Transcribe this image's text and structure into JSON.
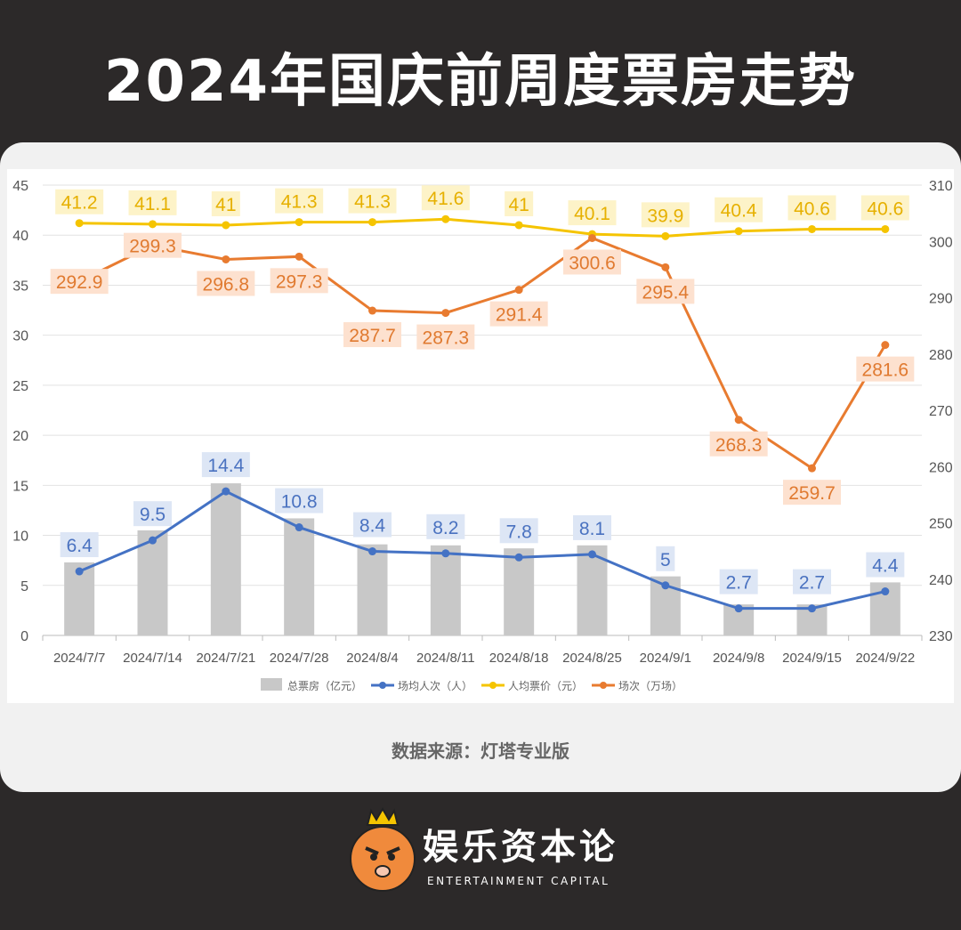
{
  "title": "2024年国庆前周度票房走势",
  "source": "数据来源：灯塔专业版",
  "brand": {
    "name_cn": "娱乐资本论",
    "name_en": "ENTERTAINMENT CAPITAL"
  },
  "chart_data": {
    "type": "bar+line",
    "categories": [
      "2024/7/7",
      "2024/7/14",
      "2024/7/21",
      "2024/7/28",
      "2024/8/4",
      "2024/8/11",
      "2024/8/18",
      "2024/8/25",
      "2024/9/1",
      "2024/9/8",
      "2024/9/15",
      "2024/9/22"
    ],
    "left_axis": {
      "ylim": [
        0,
        45
      ],
      "ticks": [
        0,
        5,
        10,
        15,
        20,
        25,
        30,
        35,
        40,
        45
      ]
    },
    "right_axis": {
      "ylim": [
        230,
        310
      ],
      "ticks": [
        230,
        240,
        250,
        260,
        270,
        280,
        290,
        300,
        310
      ]
    },
    "grid": true,
    "legend_position": "bottom",
    "series": [
      {
        "name": "总票房（亿元）",
        "type": "bar",
        "axis": "left",
        "color": "#c8c8c8",
        "values": [
          7.3,
          10.5,
          15.2,
          11.7,
          9.1,
          9.0,
          8.7,
          9.0,
          5.9,
          3.1,
          3.1,
          5.3
        ]
      },
      {
        "name": "场均人次（人）",
        "type": "line",
        "axis": "left",
        "color": "#4472c4",
        "values": [
          6.4,
          9.5,
          14.4,
          10.8,
          8.4,
          8.2,
          7.8,
          8.1,
          5.0,
          2.7,
          2.7,
          4.4
        ]
      },
      {
        "name": "人均票价（元）",
        "type": "line",
        "axis": "left",
        "color": "#f5c400",
        "values": [
          41.2,
          41.1,
          41.0,
          41.3,
          41.3,
          41.6,
          41.0,
          40.1,
          39.9,
          40.4,
          40.6,
          40.6
        ]
      },
      {
        "name": "场次（万场）",
        "type": "line",
        "axis": "right",
        "color": "#e87b30",
        "values": [
          292.9,
          299.3,
          296.8,
          297.3,
          287.7,
          287.3,
          291.4,
          300.6,
          295.4,
          268.3,
          259.7,
          281.6
        ]
      }
    ]
  }
}
